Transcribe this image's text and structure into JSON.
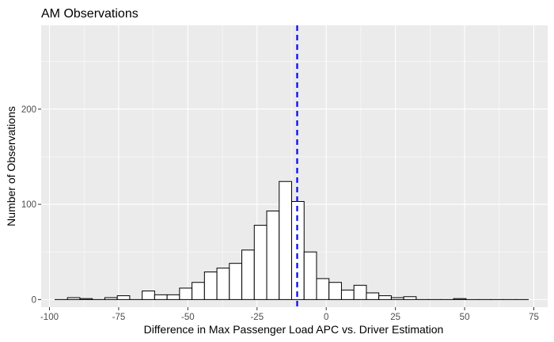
{
  "chart_data": {
    "type": "bar",
    "title": "AM Observations",
    "xlabel": "Difference in Max Passenger Load APC vs. Driver Estimation",
    "ylabel": "Number of Observations",
    "xlim": [
      -103,
      80
    ],
    "ylim": [
      -8,
      288
    ],
    "x_ticks": [
      -100,
      -75,
      -50,
      -25,
      0,
      25,
      50,
      75
    ],
    "x_tick_labels": [
      "-100",
      "-75",
      "-50",
      "-25",
      "0",
      "25",
      "50",
      "75"
    ],
    "y_ticks": [
      0,
      100,
      200
    ],
    "y_tick_labels": [
      "0",
      "100",
      "200"
    ],
    "bin_width": 4.5,
    "bin_centers": [
      -95.75,
      -91.25,
      -86.75,
      -82.25,
      -77.75,
      -73.25,
      -68.75,
      -64.25,
      -59.75,
      -55.25,
      -50.75,
      -46.25,
      -41.75,
      -37.25,
      -32.75,
      -28.25,
      -23.75,
      -19.25,
      -14.75,
      -10.25,
      -5.75,
      -1.25,
      3.25,
      7.75,
      12.25,
      16.75,
      21.25,
      25.75,
      30.25,
      34.75,
      39.25,
      43.75,
      48.25,
      52.75,
      57.25,
      61.75,
      66.25,
      70.75
    ],
    "values": [
      0,
      2,
      1,
      0,
      2,
      4,
      0,
      9,
      5,
      5,
      12,
      18,
      29,
      33,
      38,
      52,
      78,
      93,
      124,
      103,
      50,
      22,
      18,
      10,
      15,
      7,
      4,
      2,
      3,
      0,
      0,
      0,
      1,
      0,
      0,
      0,
      0,
      0
    ],
    "vline": {
      "x": -10.5,
      "color": "#0000ff",
      "style": "dashed"
    },
    "panel_background": "#ebebeb",
    "grid": true
  }
}
